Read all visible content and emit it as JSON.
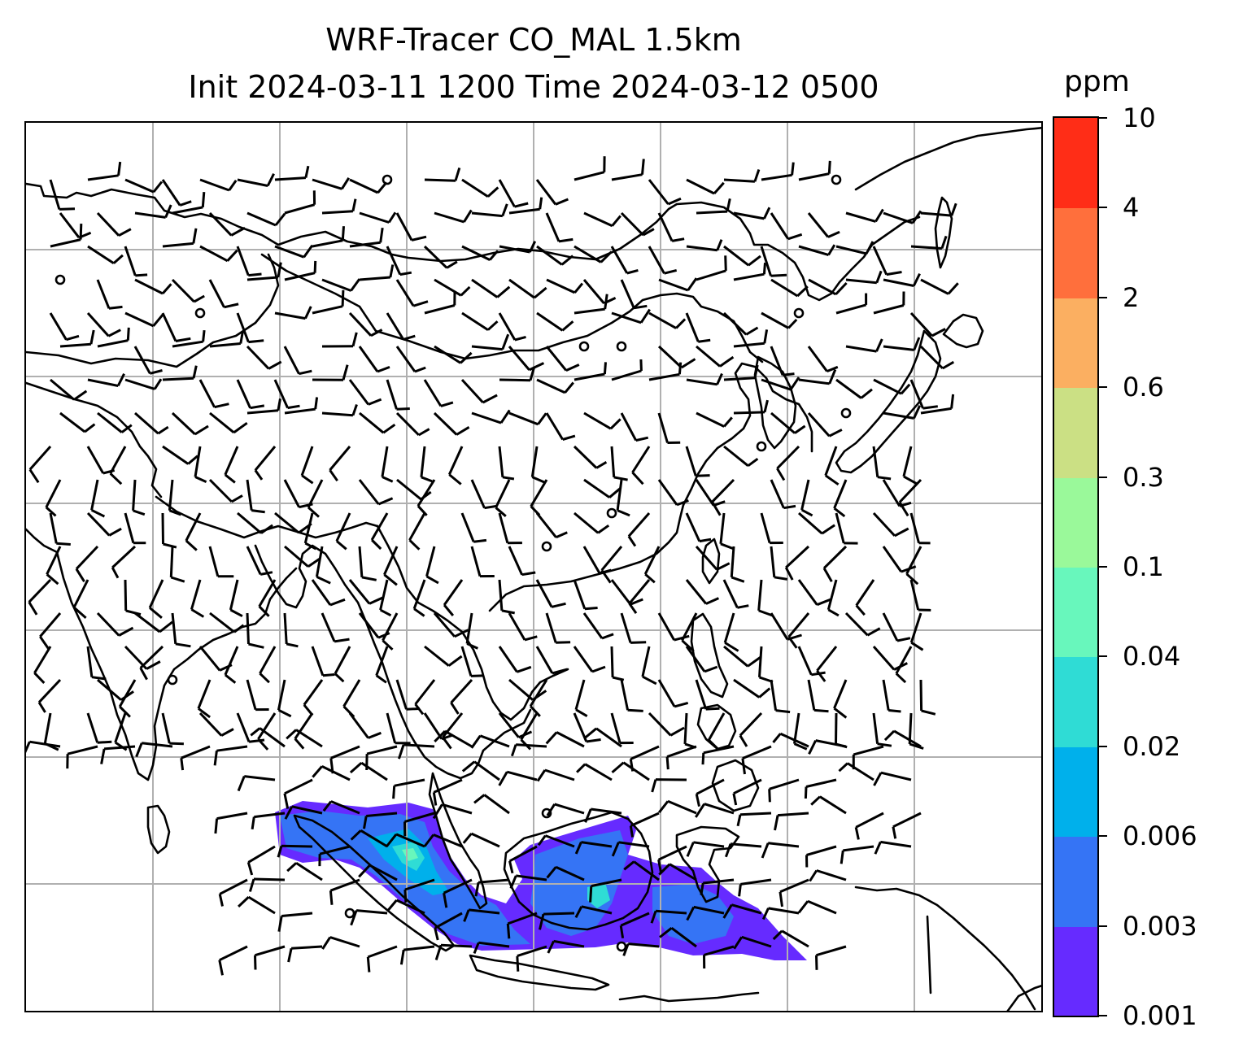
{
  "title": {
    "line1": "WRF-Tracer CO_MAL 1.5km",
    "line2": "Init 2024-03-11 1200 Time 2024-03-12 0500"
  },
  "colorbar": {
    "units": "ppm",
    "levels": [
      "0.001",
      "0.003",
      "0.006",
      "0.02",
      "0.04",
      "0.1",
      "0.3",
      "0.6",
      "2",
      "4",
      "10"
    ],
    "colors": [
      "#662bff",
      "#3574f5",
      "#00b0eb",
      "#2fdcd5",
      "#68f7bc",
      "#9af99a",
      "#cbe084",
      "#fbaf61",
      "#ff6f3c",
      "#ff2d17"
    ]
  },
  "map": {
    "gridlines": true,
    "gridline_color": "#b0b0b0",
    "coastline_color": "#000000",
    "features": [
      "coastlines",
      "country-borders",
      "wind-barbs",
      "co-mal-tracer-field"
    ]
  }
}
